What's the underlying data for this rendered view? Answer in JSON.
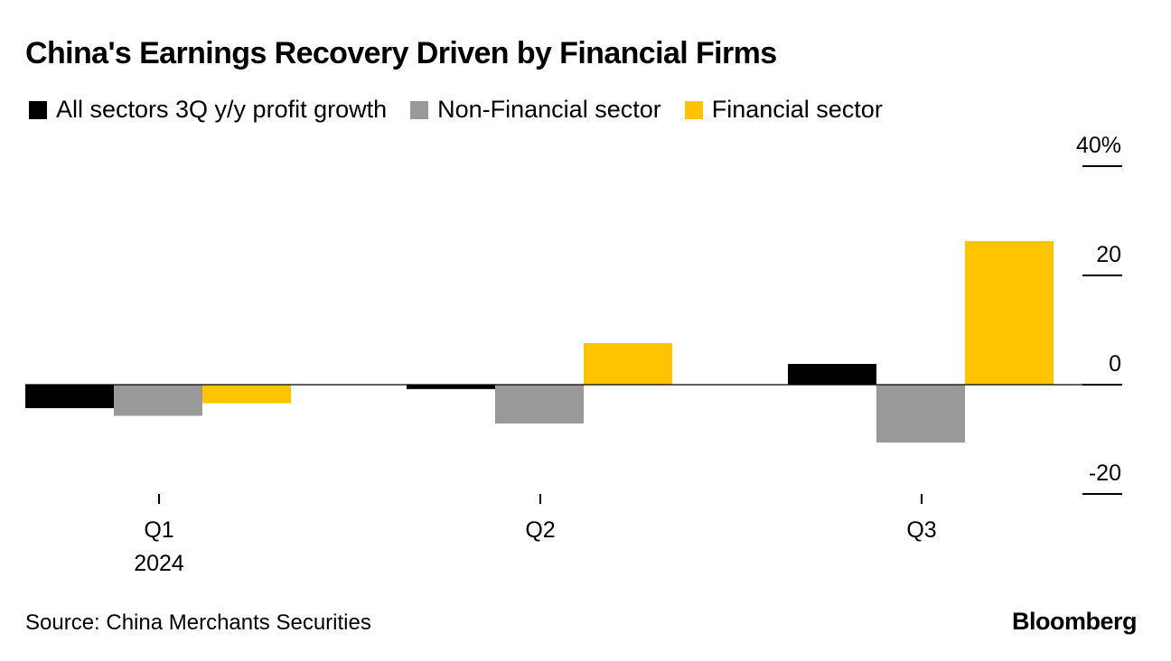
{
  "colors": {
    "all_sectors": "#000000",
    "non_financial": "#999999",
    "financial": "#ffc400",
    "axis": "#000000"
  },
  "source": "Source: China Merchants Securities",
  "brand": "Bloomberg",
  "chart_data": {
    "type": "bar",
    "title": "China's Earnings Recovery Driven by Financial Firms",
    "categories": [
      "Q1",
      "Q2",
      "Q3"
    ],
    "category_sublabels": [
      "2024",
      "",
      ""
    ],
    "series": [
      {
        "name": "All sectors 3Q y/y profit growth",
        "values": [
          -4.3,
          -0.8,
          3.8
        ]
      },
      {
        "name": "Non-Financial sector",
        "values": [
          -5.7,
          -7.1,
          -10.6
        ]
      },
      {
        "name": "Financial sector",
        "values": [
          -3.4,
          7.6,
          26.3
        ]
      }
    ],
    "yticks": [
      -20,
      0,
      20,
      40
    ],
    "ytick_labels": [
      "-20",
      "0",
      "20",
      "40%"
    ],
    "ylim": [
      -20,
      40
    ],
    "xlabel": "",
    "ylabel": "",
    "legend": "top-left",
    "grid": false
  }
}
